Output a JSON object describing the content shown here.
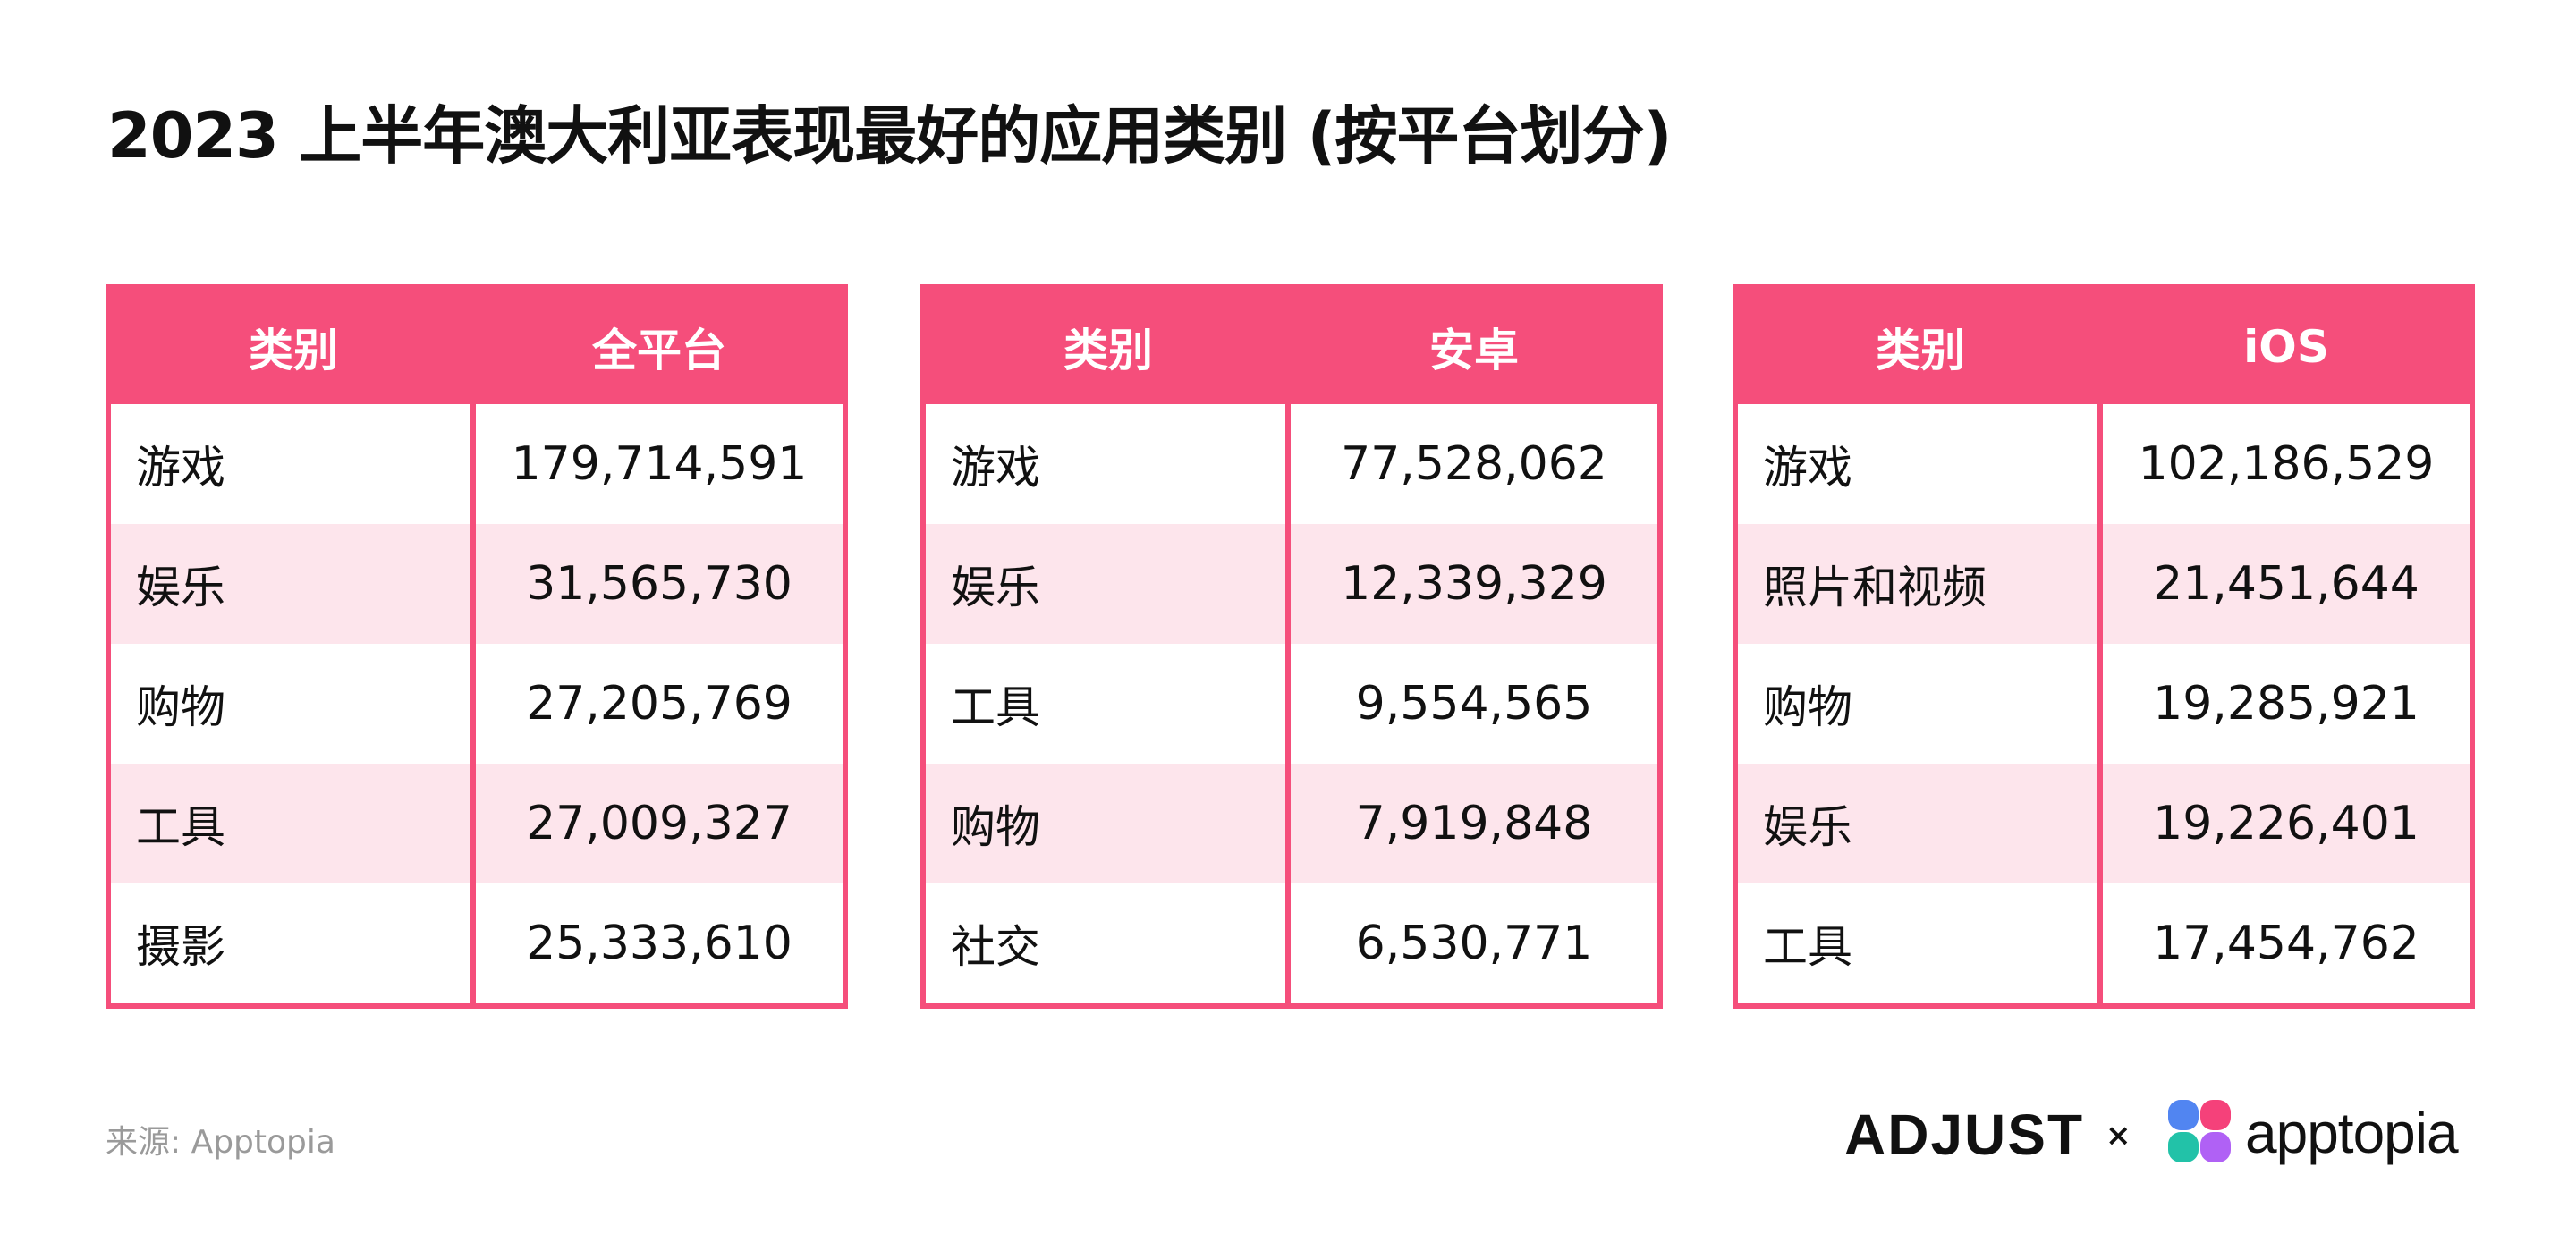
{
  "title": "2023 上半年澳大利亚表现最好的应用类别 (按平台划分)",
  "tables": [
    {
      "headers": [
        "类别",
        "全平台"
      ],
      "rows": [
        {
          "category": "游戏",
          "value": "179,714,591"
        },
        {
          "category": "娱乐",
          "value": "31,565,730"
        },
        {
          "category": "购物",
          "value": "27,205,769"
        },
        {
          "category": "工具",
          "value": "27,009,327"
        },
        {
          "category": "摄影",
          "value": "25,333,610"
        }
      ]
    },
    {
      "headers": [
        "类别",
        "安卓"
      ],
      "rows": [
        {
          "category": "游戏",
          "value": "77,528,062"
        },
        {
          "category": "娱乐",
          "value": "12,339,329"
        },
        {
          "category": "工具",
          "value": "9,554,565"
        },
        {
          "category": "购物",
          "value": "7,919,848"
        },
        {
          "category": "社交",
          "value": "6,530,771"
        }
      ]
    },
    {
      "headers": [
        "类别",
        "iOS"
      ],
      "rows": [
        {
          "category": "游戏",
          "value": "102,186,529"
        },
        {
          "category": "照片和视频",
          "value": "21,451,644"
        },
        {
          "category": "购物",
          "value": "19,285,921"
        },
        {
          "category": "娱乐",
          "value": "19,226,401"
        },
        {
          "category": "工具",
          "value": "17,454,762"
        }
      ]
    }
  ],
  "source": "来源: Apptopia",
  "logos": {
    "adjust": "ADJUST",
    "times": "×",
    "apptopia": "apptopia"
  },
  "colors": {
    "accent": "#f54e7b",
    "row_alt": "#fde5ec",
    "text": "#111111",
    "muted": "#9a9a9a"
  }
}
